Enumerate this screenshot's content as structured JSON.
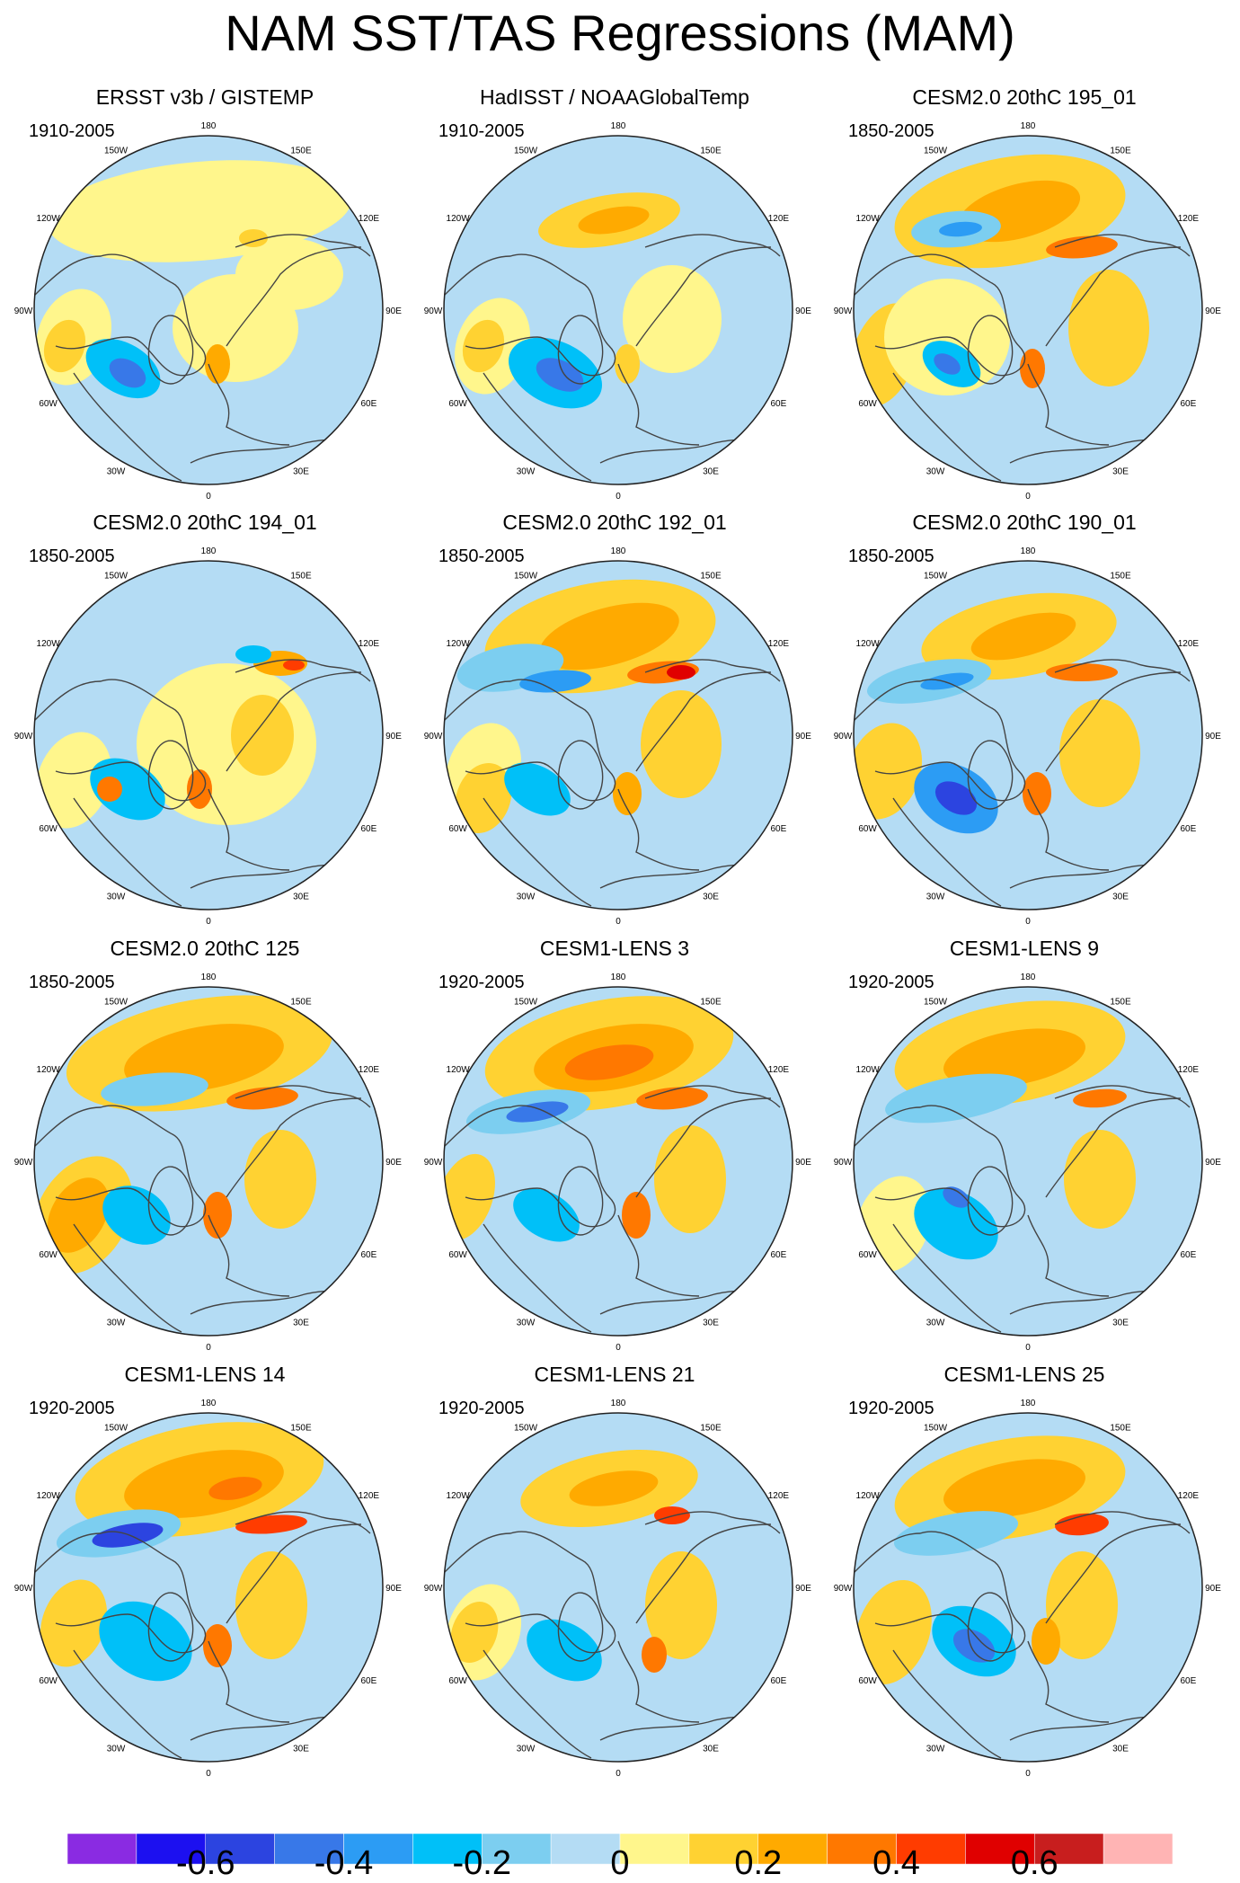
{
  "title": "NAM SST/TAS Regressions (MAM)",
  "map_labels": {
    "lon": [
      "180",
      "150E",
      "120E",
      "90E",
      "60E",
      "30E",
      "0",
      "30W",
      "60W",
      "90W",
      "120W",
      "150W"
    ]
  },
  "panels": [
    {
      "title": "ERSST v3b / GISTEMP",
      "period": "1910-2005"
    },
    {
      "title": "HadISST / NOAAGlobalTemp",
      "period": "1910-2005"
    },
    {
      "title": "CESM2.0 20thC 195_01",
      "period": "1850-2005"
    },
    {
      "title": "CESM2.0 20thC 194_01",
      "period": "1850-2005"
    },
    {
      "title": "CESM2.0 20thC 192_01",
      "period": "1850-2005"
    },
    {
      "title": "CESM2.0 20thC 190_01",
      "period": "1850-2005"
    },
    {
      "title": "CESM2.0 20thC 125",
      "period": "1850-2005"
    },
    {
      "title": "CESM1-LENS 3",
      "period": "1920-2005"
    },
    {
      "title": "CESM1-LENS 9",
      "period": "1920-2005"
    },
    {
      "title": "CESM1-LENS 14",
      "period": "1920-2005"
    },
    {
      "title": "CESM1-LENS 21",
      "period": "1920-2005"
    },
    {
      "title": "CESM1-LENS 25",
      "period": "1920-2005"
    }
  ],
  "colorbar": {
    "colors": [
      "#8a2be2",
      "#1c10f0",
      "#2c44e0",
      "#3878e8",
      "#2c9cf4",
      "#00c0f8",
      "#7ccef0",
      "#b4dcf4",
      "#fff68c",
      "#ffd232",
      "#ffaa00",
      "#ff7800",
      "#ff3c00",
      "#e00000",
      "#c81e1e",
      "#ffb4b4"
    ],
    "labels": [
      "-0.6",
      "-0.4",
      "-0.2",
      "0",
      "0.2",
      "0.4",
      "0.6"
    ]
  }
}
